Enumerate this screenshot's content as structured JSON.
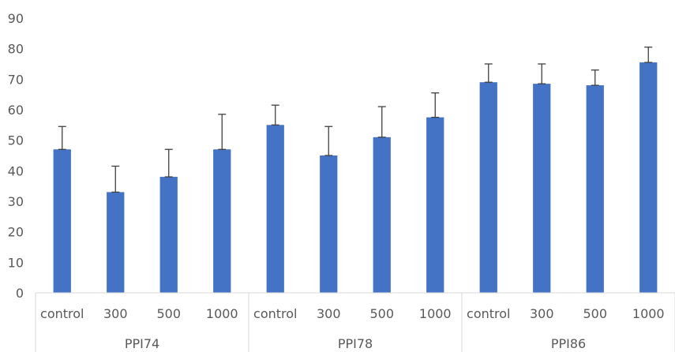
{
  "chart_data": {
    "type": "bar",
    "title": "",
    "xlabel": "",
    "ylabel": "",
    "ylim": [
      0,
      90
    ],
    "yticks": [
      0,
      10,
      20,
      30,
      40,
      50,
      60,
      70,
      80,
      90
    ],
    "grid": false,
    "legend": "none",
    "bar_color": "#4472C4",
    "groups": [
      {
        "name": "PPI74",
        "categories": [
          "control",
          "300",
          "500",
          "1000"
        ],
        "values": [
          47,
          33,
          38,
          47
        ],
        "error_upper": [
          7.5,
          8.5,
          9,
          11.5
        ]
      },
      {
        "name": "PPI78",
        "categories": [
          "control",
          "300",
          "500",
          "1000"
        ],
        "values": [
          55,
          45,
          51,
          57.5
        ],
        "error_upper": [
          6.5,
          9.5,
          10,
          8
        ]
      },
      {
        "name": "PPI86",
        "categories": [
          "control",
          "300",
          "500",
          "1000"
        ],
        "values": [
          69,
          68.5,
          68,
          75.5
        ],
        "error_upper": [
          6,
          6.5,
          5,
          5
        ]
      }
    ]
  }
}
